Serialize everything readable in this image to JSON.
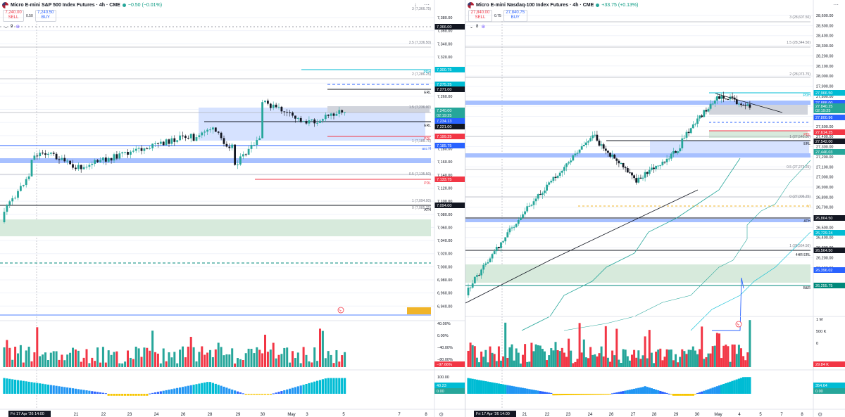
{
  "colors": {
    "up": "#26a69a",
    "down": "#ef5350",
    "accent": "#2962ff",
    "grid": "#f0f3fa"
  },
  "icons": {
    "flag": "us-flag-icon",
    "status": "market-open-dot-icon",
    "gear": "gear-icon",
    "lightning": "lightning-icon",
    "maximize": "maximize-icon"
  },
  "left": {
    "header": {
      "title": "Micro E-mini S&P 500 Index Futures · 4h · CME",
      "change": "−0.50 (−0.01%)"
    },
    "sell": {
      "price": "7,240.00",
      "label": "SELL"
    },
    "spread": "0.50",
    "buy": {
      "price": "7,240.50",
      "label": "BUY"
    },
    "indicator_count": "9",
    "price_axis": [
      "7,380.00",
      "7,360.00",
      "7,340.00",
      "7,320.00",
      "7,300.00",
      "7,280.00",
      "7,260.00",
      "7,240.00",
      "7,220.00",
      "7,200.00",
      "7,180.00",
      "7,160.00",
      "7,140.00",
      "7,120.00",
      "7,100.00",
      "7,080.00",
      "7,060.00",
      "7,040.00",
      "7,020.00",
      "7,000.00",
      "6,980.00",
      "6,960.00",
      "6,940.00"
    ],
    "price_tags": [
      {
        "text": "7,366.00",
        "type": "dark"
      },
      {
        "text": "7,300.75",
        "type": "cyan"
      },
      {
        "text": "7,275.25",
        "type": "cyan"
      },
      {
        "text": "7,271.00",
        "type": "dark"
      },
      {
        "text": "7,240.00",
        "type": "green"
      },
      {
        "text": "02:19:25",
        "type": "green"
      },
      {
        "text": "7,234.13",
        "type": "blue"
      },
      {
        "text": "7,221.00",
        "type": "dark"
      },
      {
        "text": "7,199.25",
        "type": "red"
      },
      {
        "text": "7,185.75",
        "type": "blue"
      },
      {
        "text": "7,133.75",
        "type": "red"
      },
      {
        "text": "7,094.00",
        "type": "dark"
      }
    ],
    "fib_labels": [
      "3 (7,366.75)",
      "2.5 (7,336.50)",
      "2 (7,286.25)",
      "1.5 (7,236.00)",
      "1 (7,185.75)",
      "0.5 (7,135.50)",
      "1 (7,094.00)",
      "0 (7,085.25)"
    ],
    "level_labels": [
      "PDH",
      "ERL",
      "ERL",
      "PDL",
      "acc H",
      "PDL",
      "ATH"
    ],
    "volume_axis": [
      "40.00%",
      "0.00%",
      "−40.00%",
      "−80.00%"
    ],
    "volume_tag": "−97.66%",
    "osc_axis": [
      "100.00"
    ],
    "osc_tags": [
      "40.23",
      "0.00"
    ],
    "time_axis": {
      "first": "Fri 17 Apr '26",
      "first_time": "14:00",
      "ticks": [
        "21",
        "22",
        "23",
        "24",
        "26",
        "28",
        "29",
        "30",
        "May",
        "3",
        "5",
        "7",
        "8"
      ]
    }
  },
  "right": {
    "header": {
      "title": "Micro E-mini Nasdaq-100 Index Futures · 4h · CME",
      "change": "+33.75 (+0.13%)"
    },
    "sell": {
      "price": "27,840.00",
      "label": "SELL"
    },
    "spread": "0.75",
    "buy": {
      "price": "27,840.75",
      "label": "BUY"
    },
    "indicator_count": "8",
    "price_axis": [
      "28,600.00",
      "28,500.00",
      "28,400.00",
      "28,300.00",
      "28,200.00",
      "28,100.00",
      "28,000.00",
      "27,900.00",
      "27,800.00",
      "27,700.00",
      "27,600.00",
      "27,500.00",
      "27,400.00",
      "27,300.00",
      "27,200.00",
      "27,100.00",
      "27,000.00",
      "26,900.00",
      "26,800.00",
      "26,700.00",
      "26,600.00",
      "26,500.00",
      "26,400.00",
      "26,300.00",
      "26,200.00",
      "26,100.00"
    ],
    "price_tags": [
      {
        "text": "27,966.50",
        "type": "cyan"
      },
      {
        "text": "27,888.00",
        "type": "blue"
      },
      {
        "text": "27,840.25",
        "type": "green"
      },
      {
        "text": "02:19:25",
        "type": "green"
      },
      {
        "text": "27,800.96",
        "type": "blue"
      },
      {
        "text": "27,614.25",
        "type": "red"
      },
      {
        "text": "27,542.00",
        "type": "dark"
      },
      {
        "text": "27,446.03",
        "type": "green"
      },
      {
        "text": "26,864.50",
        "type": "dark"
      },
      {
        "text": "26,729.24",
        "type": "cyan"
      },
      {
        "text": "26,564.50",
        "type": "dark"
      },
      {
        "text": "26,396.02",
        "type": "blue"
      },
      {
        "text": "26,255.75",
        "type": "teal"
      }
    ],
    "fib_labels": [
      "3 (28,607.50)",
      "1.5 (28,344.50)",
      "2 (28,073.75)",
      "1 (27,540.00)",
      "0.5 (27,273.25)",
      "0 (27,006.25)",
      "1 (26,564.50)"
    ],
    "level_labels": [
      "PDH",
      "PDL",
      "ERL",
      "VI",
      "ATH",
      "4HR ERL",
      "B&R"
    ],
    "volume_axis": [
      "1 M",
      "500 K",
      "0"
    ],
    "volume_tag": "29.84 K",
    "osc_tags": [
      "354.64",
      "0.00"
    ],
    "time_axis": {
      "first": "Fri 17 Apr '26",
      "first_time": "14:00",
      "ticks": [
        "21",
        "22",
        "23",
        "24",
        "26",
        "27",
        "28",
        "29",
        "30",
        "May",
        "4",
        "5",
        "7",
        "8"
      ]
    }
  }
}
